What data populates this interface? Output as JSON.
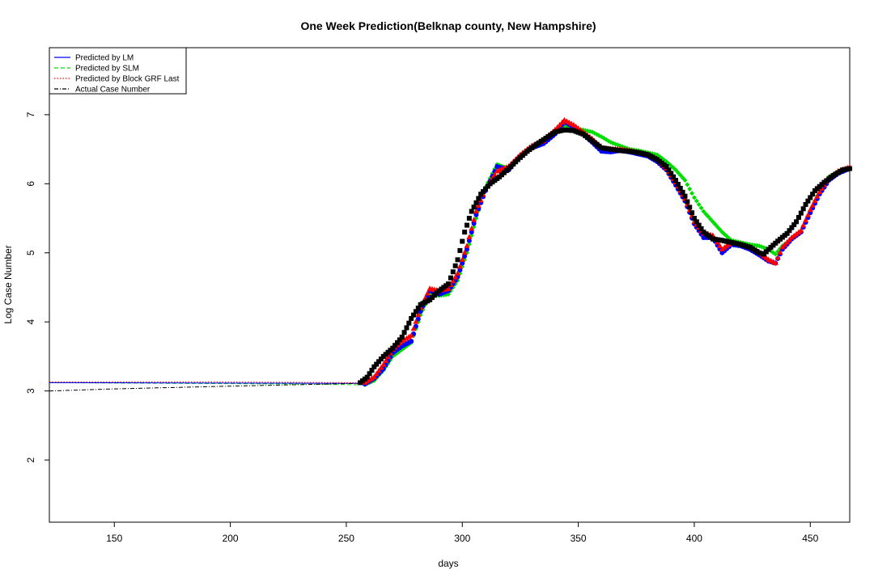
{
  "chart_data": {
    "type": "line",
    "title": "One Week Prediction(Belknap county, New Hampshire)",
    "xlabel": "days",
    "ylabel": "Log Case Number",
    "xlim": [
      122,
      467
    ],
    "ylim": [
      1.1,
      7.97
    ],
    "x_ticks": [
      150,
      200,
      250,
      300,
      350,
      400,
      450
    ],
    "y_ticks": [
      2,
      3,
      4,
      5,
      6,
      7
    ],
    "grid": false,
    "legend_position": "top-left",
    "legend": [
      {
        "label": "Predicted by LM",
        "color": "#0000ff",
        "line_style": "solid"
      },
      {
        "label": "Predicted by SLM",
        "color": "#00dd00",
        "line_style": "dashed"
      },
      {
        "label": "Predicted by Block GRF Last",
        "color": "#ff0000",
        "line_style": "dotted"
      },
      {
        "label": "Actual Case Number",
        "color": "#000000",
        "line_style": "dashdot"
      }
    ],
    "series": [
      {
        "name": "Actual Case Number",
        "color": "#000000",
        "flat_segment": {
          "x": [
            122,
            150,
            200,
            255
          ],
          "y": [
            3.0,
            3.03,
            3.07,
            3.11
          ]
        },
        "markers": {
          "x": [
            256,
            259,
            262,
            266,
            270,
            274,
            278,
            282,
            286,
            290,
            294,
            298,
            301,
            304,
            308,
            312,
            316,
            320,
            324,
            328,
            332,
            336,
            340,
            344,
            348,
            352,
            356,
            360,
            364,
            368,
            372,
            376,
            380,
            384,
            388,
            392,
            396,
            400,
            404,
            408,
            412,
            416,
            420,
            424,
            428,
            430,
            432,
            436,
            440,
            444,
            448,
            452,
            456,
            460,
            464,
            467
          ],
          "y": [
            3.12,
            3.2,
            3.35,
            3.5,
            3.62,
            3.78,
            4.05,
            4.25,
            4.32,
            4.45,
            4.55,
            4.9,
            5.3,
            5.6,
            5.85,
            6.0,
            6.1,
            6.22,
            6.35,
            6.47,
            6.57,
            6.66,
            6.75,
            6.78,
            6.77,
            6.72,
            6.62,
            6.52,
            6.5,
            6.48,
            6.47,
            6.45,
            6.42,
            6.35,
            6.25,
            6.05,
            5.82,
            5.5,
            5.3,
            5.2,
            5.18,
            5.15,
            5.12,
            5.08,
            5.0,
            4.98,
            5.05,
            5.17,
            5.28,
            5.45,
            5.7,
            5.9,
            6.02,
            6.12,
            6.2,
            6.22
          ]
        }
      },
      {
        "name": "Predicted by LM",
        "color": "#0000ff",
        "flat_segment": {
          "x": [
            122,
            255
          ],
          "y": [
            3.12,
            3.11
          ]
        },
        "markers": {
          "x": [
            258,
            262,
            266,
            270,
            274,
            278,
            282,
            286,
            290,
            294,
            298,
            302,
            306,
            310,
            315,
            320,
            325,
            330,
            335,
            340,
            344,
            348,
            352,
            356,
            360,
            364,
            368,
            372,
            376,
            380,
            384,
            388,
            392,
            396,
            400,
            404,
            408,
            412,
            416,
            420,
            424,
            428,
            432,
            435,
            438,
            442,
            446,
            450,
            454,
            458,
            462,
            467
          ],
          "y": [
            3.1,
            3.18,
            3.32,
            3.55,
            3.65,
            3.72,
            4.15,
            4.45,
            4.4,
            4.45,
            4.65,
            5.05,
            5.55,
            5.9,
            6.25,
            6.2,
            6.4,
            6.52,
            6.58,
            6.72,
            6.9,
            6.82,
            6.72,
            6.6,
            6.47,
            6.46,
            6.48,
            6.46,
            6.43,
            6.4,
            6.32,
            6.2,
            5.98,
            5.75,
            5.42,
            5.22,
            5.22,
            5.0,
            5.12,
            5.1,
            5.05,
            4.97,
            4.88,
            4.85,
            5.05,
            5.2,
            5.3,
            5.58,
            5.85,
            6.05,
            6.15,
            6.22
          ]
        }
      },
      {
        "name": "Predicted by SLM",
        "color": "#00dd00",
        "flat_segment": {
          "x": [
            122,
            230,
            255
          ],
          "y": [
            3.12,
            3.1,
            3.09
          ]
        },
        "markers": {
          "x": [
            258,
            262,
            266,
            270,
            274,
            278,
            282,
            286,
            290,
            294,
            298,
            302,
            306,
            310,
            315,
            320,
            325,
            330,
            335,
            340,
            344,
            348,
            352,
            356,
            360,
            364,
            368,
            372,
            376,
            380,
            384,
            388,
            392,
            396,
            400,
            404,
            408,
            412,
            416,
            420,
            424,
            428,
            432,
            435,
            438,
            442,
            446,
            450,
            454,
            458,
            462,
            467
          ],
          "y": [
            3.09,
            3.15,
            3.3,
            3.5,
            3.6,
            3.7,
            4.1,
            4.4,
            4.38,
            4.4,
            4.6,
            5.0,
            5.5,
            5.95,
            6.28,
            6.22,
            6.4,
            6.52,
            6.6,
            6.72,
            6.85,
            6.8,
            6.78,
            6.75,
            6.68,
            6.6,
            6.55,
            6.5,
            6.48,
            6.45,
            6.42,
            6.32,
            6.2,
            6.05,
            5.8,
            5.6,
            5.45,
            5.3,
            5.18,
            5.15,
            5.12,
            5.1,
            5.05,
            4.98,
            5.1,
            5.2,
            5.32,
            5.6,
            5.9,
            6.1,
            6.18,
            6.22
          ]
        }
      },
      {
        "name": "Predicted by Block GRF Last",
        "color": "#ff0000",
        "flat_segment": {
          "x": [
            122,
            190,
            255
          ],
          "y": [
            3.13,
            3.13,
            3.12
          ]
        },
        "markers": {
          "x": [
            258,
            262,
            266,
            270,
            274,
            278,
            282,
            286,
            290,
            294,
            298,
            302,
            306,
            310,
            315,
            320,
            325,
            330,
            335,
            340,
            344,
            348,
            352,
            356,
            360,
            364,
            368,
            372,
            376,
            380,
            384,
            388,
            392,
            396,
            400,
            404,
            408,
            412,
            416,
            420,
            424,
            428,
            432,
            435,
            438,
            442,
            446,
            450,
            454,
            458,
            462,
            467
          ],
          "y": [
            3.12,
            3.2,
            3.38,
            3.6,
            3.72,
            3.8,
            4.2,
            4.48,
            4.45,
            4.48,
            4.7,
            5.1,
            5.6,
            5.92,
            6.18,
            6.25,
            6.42,
            6.55,
            6.62,
            6.78,
            6.92,
            6.85,
            6.75,
            6.65,
            6.52,
            6.5,
            6.5,
            6.48,
            6.45,
            6.42,
            6.35,
            6.22,
            6.02,
            5.78,
            5.45,
            5.28,
            5.25,
            5.05,
            5.15,
            5.12,
            5.08,
            5.0,
            4.9,
            4.85,
            5.08,
            5.22,
            5.32,
            5.62,
            5.88,
            6.08,
            6.18,
            6.24
          ]
        }
      }
    ]
  }
}
